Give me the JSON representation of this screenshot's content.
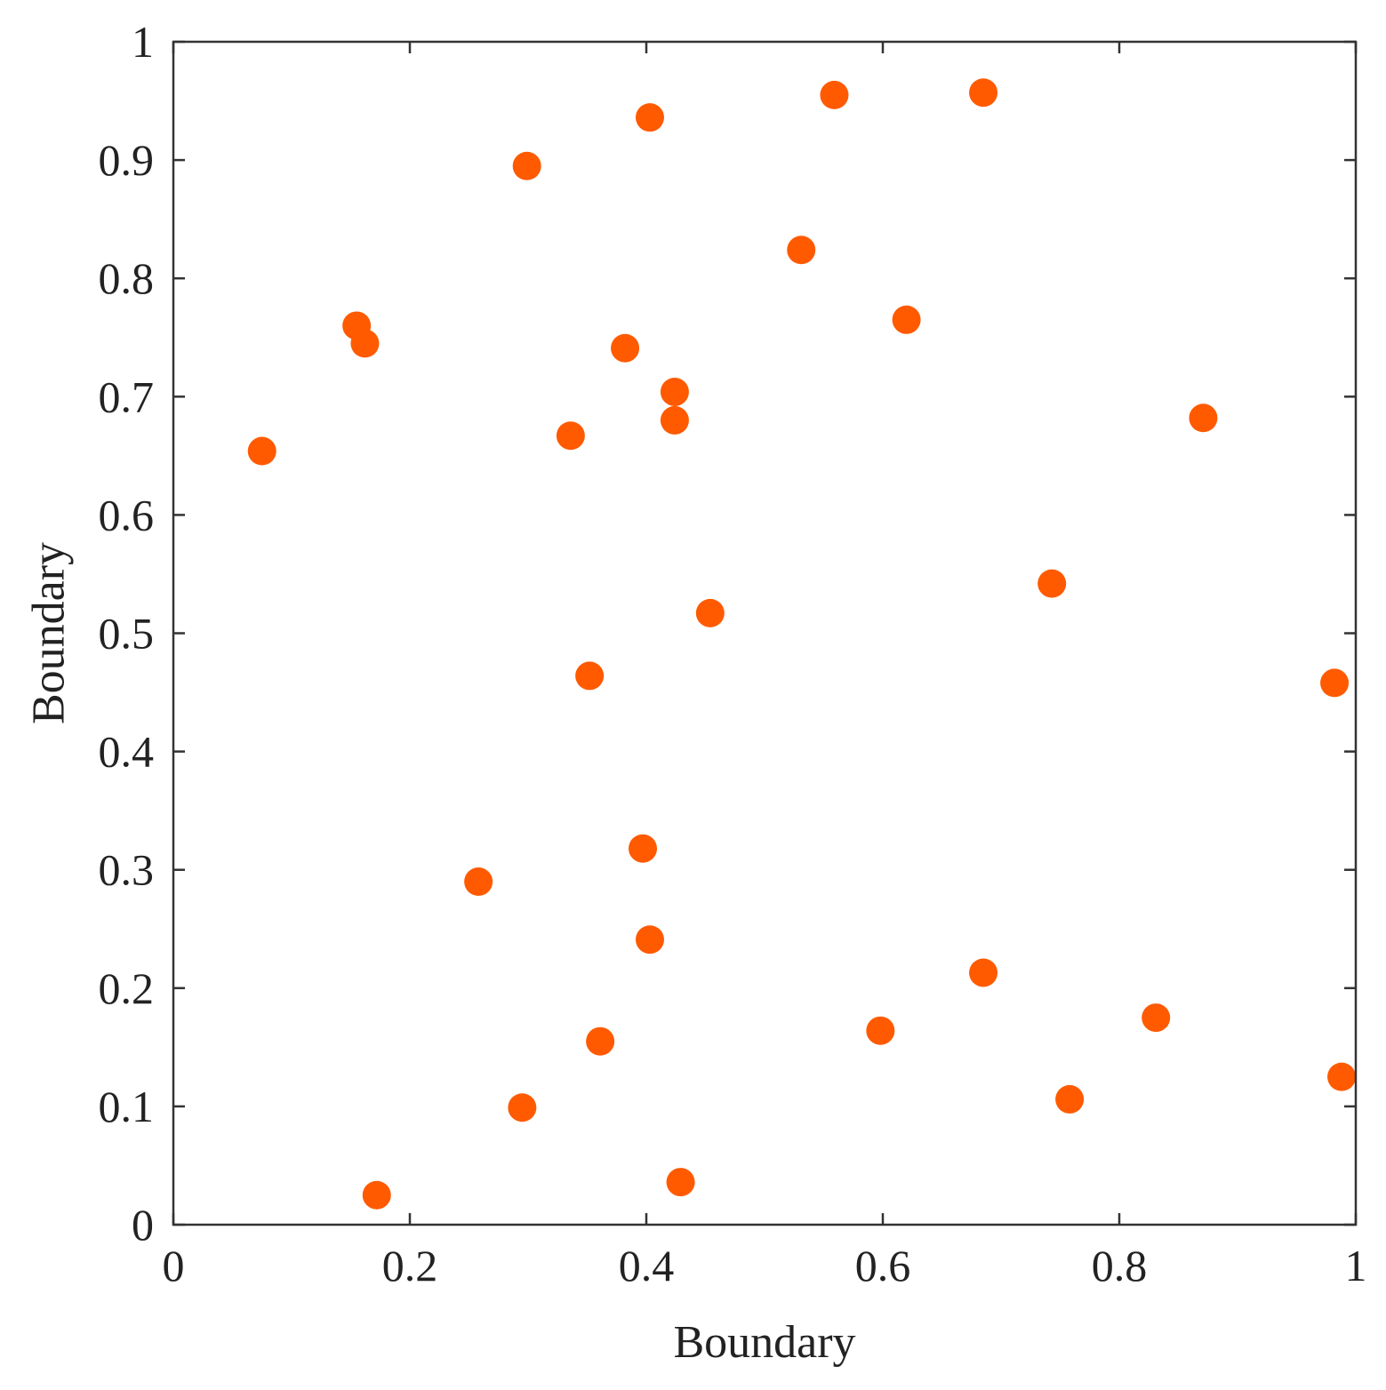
{
  "chart_data": {
    "type": "scatter",
    "xlabel": "Boundary",
    "ylabel": "Boundary",
    "xlim": [
      0,
      1
    ],
    "ylim": [
      0,
      1
    ],
    "grid": false,
    "legend": "none",
    "marker_color": "#ff5a00",
    "x_ticks": [
      "0",
      "0.2",
      "0.4",
      "0.6",
      "0.8",
      "1"
    ],
    "y_ticks": [
      "0",
      "0.1",
      "0.2",
      "0.3",
      "0.4",
      "0.5",
      "0.6",
      "0.7",
      "0.8",
      "0.9",
      "1"
    ],
    "series": [
      {
        "points": [
          {
            "x": 0.075,
            "y": 0.654
          },
          {
            "x": 0.155,
            "y": 0.76
          },
          {
            "x": 0.162,
            "y": 0.745
          },
          {
            "x": 0.172,
            "y": 0.025
          },
          {
            "x": 0.258,
            "y": 0.29
          },
          {
            "x": 0.295,
            "y": 0.099
          },
          {
            "x": 0.299,
            "y": 0.895
          },
          {
            "x": 0.336,
            "y": 0.667
          },
          {
            "x": 0.352,
            "y": 0.464
          },
          {
            "x": 0.361,
            "y": 0.155
          },
          {
            "x": 0.382,
            "y": 0.741
          },
          {
            "x": 0.397,
            "y": 0.318
          },
          {
            "x": 0.403,
            "y": 0.936
          },
          {
            "x": 0.403,
            "y": 0.241
          },
          {
            "x": 0.424,
            "y": 0.704
          },
          {
            "x": 0.424,
            "y": 0.68
          },
          {
            "x": 0.429,
            "y": 0.036
          },
          {
            "x": 0.454,
            "y": 0.517
          },
          {
            "x": 0.531,
            "y": 0.824
          },
          {
            "x": 0.559,
            "y": 0.955
          },
          {
            "x": 0.598,
            "y": 0.164
          },
          {
            "x": 0.62,
            "y": 0.765
          },
          {
            "x": 0.685,
            "y": 0.957
          },
          {
            "x": 0.685,
            "y": 0.213
          },
          {
            "x": 0.743,
            "y": 0.542
          },
          {
            "x": 0.758,
            "y": 0.106
          },
          {
            "x": 0.831,
            "y": 0.175
          },
          {
            "x": 0.871,
            "y": 0.682
          },
          {
            "x": 0.982,
            "y": 0.458
          },
          {
            "x": 0.988,
            "y": 0.125
          }
        ]
      }
    ]
  }
}
